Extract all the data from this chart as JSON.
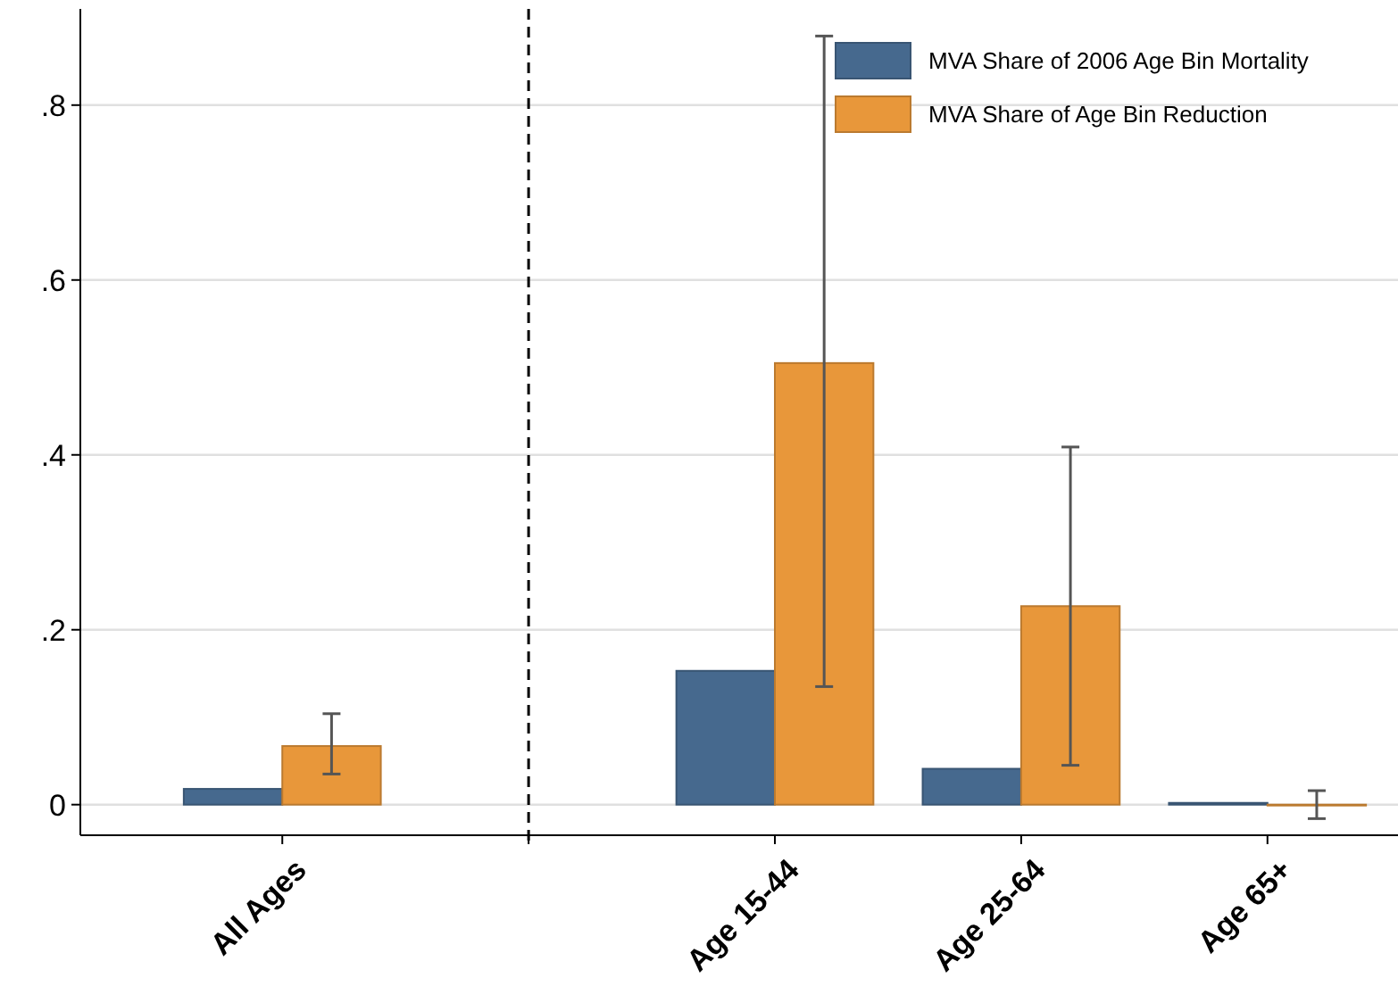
{
  "chart_data": {
    "type": "bar",
    "categories": [
      "All Ages",
      null,
      "Age 15-44",
      "Age 25-64",
      "Age 65+"
    ],
    "series": [
      {
        "name": "MVA Share of 2006 Age Bin Mortality",
        "color": "#46698e",
        "values": [
          0.018,
          null,
          0.153,
          0.041,
          0.002
        ]
      },
      {
        "name": "MVA Share of Age Bin Reduction",
        "color": "#e8973a",
        "values": [
          0.067,
          null,
          0.505,
          0.227,
          -0.001
        ],
        "errors": [
          [
            0.035,
            0.104
          ],
          null,
          [
            0.135,
            0.879
          ],
          [
            0.045,
            0.409
          ],
          [
            -0.016,
            0.016
          ]
        ]
      }
    ],
    "ylim": [
      -0.035,
      0.91
    ],
    "yticks": [
      {
        "value": 0,
        "label": "0"
      },
      {
        "value": 0.2,
        "label": ".2"
      },
      {
        "value": 0.4,
        "label": ".4"
      },
      {
        "value": 0.6,
        "label": ".6"
      },
      {
        "value": 0.8,
        "label": ".8"
      }
    ],
    "grid": "y",
    "legend": "top right"
  }
}
